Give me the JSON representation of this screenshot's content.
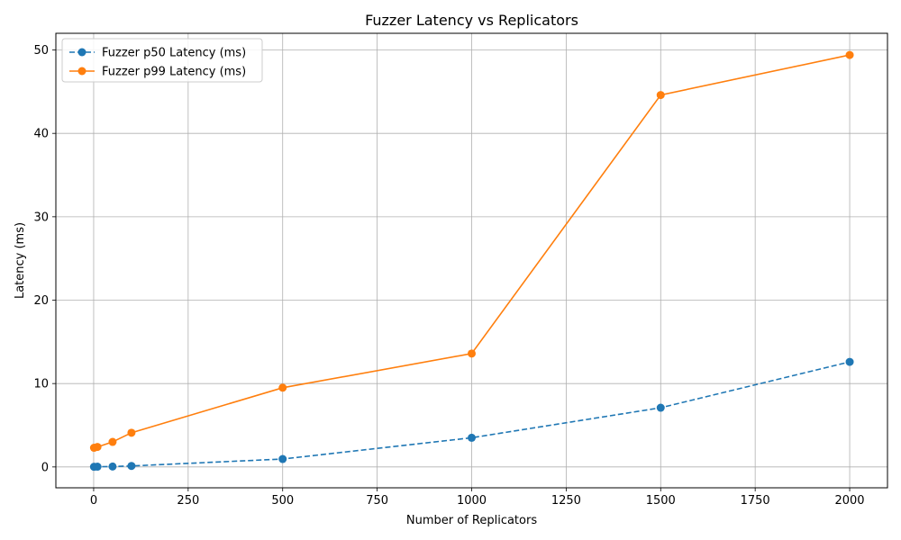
{
  "chart_data": {
    "type": "line",
    "title": "Fuzzer Latency vs Replicators",
    "xlabel": "Number of Replicators",
    "ylabel": "Latency (ms)",
    "xlim": [
      -100,
      2100
    ],
    "ylim": [
      -2.5,
      52
    ],
    "xticks": [
      0,
      250,
      500,
      750,
      1000,
      1250,
      1500,
      1750,
      2000
    ],
    "yticks": [
      0,
      10,
      20,
      30,
      40,
      50
    ],
    "grid": true,
    "legend_position": "top-left",
    "x": [
      1,
      10,
      50,
      100,
      500,
      1000,
      1500,
      2000
    ],
    "series": [
      {
        "name": "Fuzzer p50 Latency (ms)",
        "values": [
          0.02,
          0.03,
          0.05,
          0.12,
          0.95,
          3.5,
          7.1,
          12.6
        ],
        "color": "#1f77b4",
        "linestyle": "dashed",
        "marker": "circle"
      },
      {
        "name": "Fuzzer p99 Latency (ms)",
        "values": [
          2.3,
          2.4,
          3.0,
          4.1,
          9.5,
          13.6,
          44.6,
          49.4
        ],
        "color": "#ff7f0e",
        "linestyle": "solid",
        "marker": "circle"
      }
    ]
  }
}
